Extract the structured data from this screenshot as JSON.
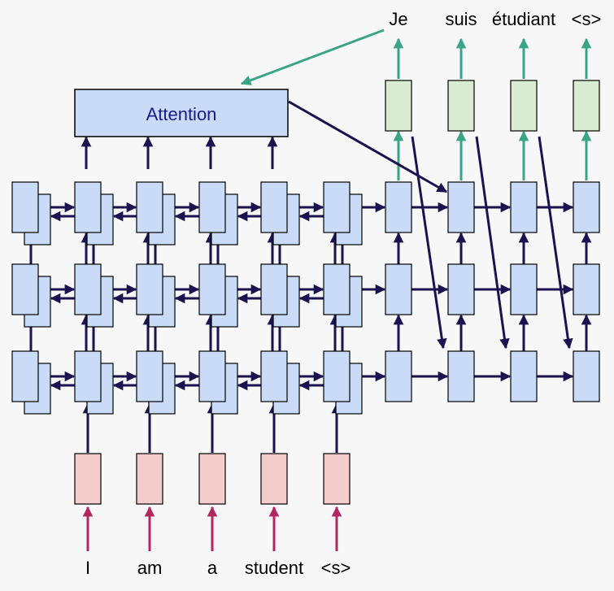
{
  "attention_label": "Attention",
  "source_words": [
    "I",
    "am",
    "a",
    "student",
    "<s>"
  ],
  "target_words": [
    "Je",
    "suis",
    "étudiant",
    "<s>"
  ],
  "colors": {
    "background": "#f7f7f7",
    "cell_fill": "#c9dbf7",
    "cell_stroke": "#000000",
    "input_fill": "#f5cccc",
    "output_fill": "#d9ecd2",
    "arrow_dark": "#1b1250",
    "arrow_green": "#3aa586",
    "arrow_red": "#b2275f",
    "attention_text": "#1c1a8c"
  }
}
